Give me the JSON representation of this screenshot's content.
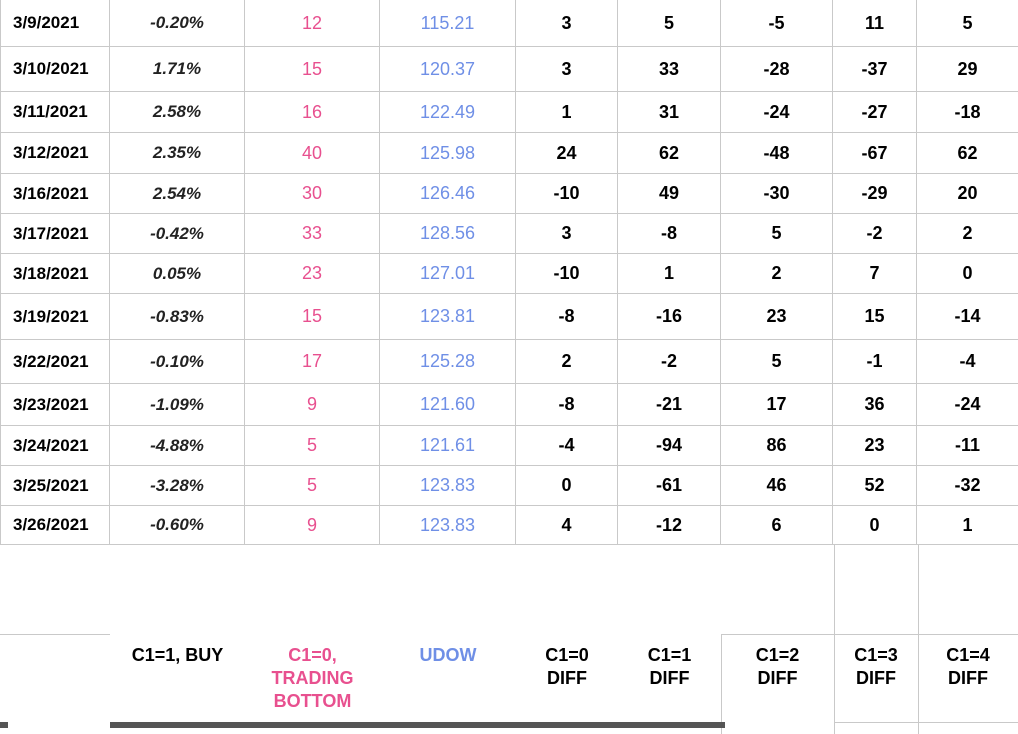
{
  "rows": [
    {
      "date": "3/9/2021",
      "pct": "-0.20%",
      "c1": "12",
      "udow": "115.21",
      "d0": "3",
      "d1": "5",
      "d2": "-5",
      "d3": "11",
      "d4": "5"
    },
    {
      "date": "3/10/2021",
      "pct": "1.71%",
      "c1": "15",
      "udow": "120.37",
      "d0": "3",
      "d1": "33",
      "d2": "-28",
      "d3": "-37",
      "d4": "29"
    },
    {
      "date": "3/11/2021",
      "pct": "2.58%",
      "c1": "16",
      "udow": "122.49",
      "d0": "1",
      "d1": "31",
      "d2": "-24",
      "d3": "-27",
      "d4": "-18"
    },
    {
      "date": "3/12/2021",
      "pct": "2.35%",
      "c1": "40",
      "udow": "125.98",
      "d0": "24",
      "d1": "62",
      "d2": "-48",
      "d3": "-67",
      "d4": "62"
    },
    {
      "date": "3/16/2021",
      "pct": "2.54%",
      "c1": "30",
      "udow": "126.46",
      "d0": "-10",
      "d1": "49",
      "d2": "-30",
      "d3": "-29",
      "d4": "20"
    },
    {
      "date": "3/17/2021",
      "pct": "-0.42%",
      "c1": "33",
      "udow": "128.56",
      "d0": "3",
      "d1": "-8",
      "d2": "5",
      "d3": "-2",
      "d4": "2"
    },
    {
      "date": "3/18/2021",
      "pct": "0.05%",
      "c1": "23",
      "udow": "127.01",
      "d0": "-10",
      "d1": "1",
      "d2": "2",
      "d3": "7",
      "d4": "0"
    },
    {
      "date": "3/19/2021",
      "pct": "-0.83%",
      "c1": "15",
      "udow": "123.81",
      "d0": "-8",
      "d1": "-16",
      "d2": "23",
      "d3": "15",
      "d4": "-14"
    },
    {
      "date": "3/22/2021",
      "pct": "-0.10%",
      "c1": "17",
      "udow": "125.28",
      "d0": "2",
      "d1": "-2",
      "d2": "5",
      "d3": "-1",
      "d4": "-4"
    },
    {
      "date": "3/23/2021",
      "pct": "-1.09%",
      "c1": "9",
      "udow": "121.60",
      "d0": "-8",
      "d1": "-21",
      "d2": "17",
      "d3": "36",
      "d4": "-24"
    },
    {
      "date": "3/24/2021",
      "pct": "-4.88%",
      "c1": "5",
      "udow": "121.61",
      "d0": "-4",
      "d1": "-94",
      "d2": "86",
      "d3": "23",
      "d4": "-11"
    },
    {
      "date": "3/25/2021",
      "pct": "-3.28%",
      "c1": "5",
      "udow": "123.83",
      "d0": "0",
      "d1": "-61",
      "d2": "46",
      "d3": "52",
      "d4": "-32"
    },
    {
      "date": "3/26/2021",
      "pct": "-0.60%",
      "c1": "9",
      "udow": "123.83",
      "d0": "4",
      "d1": "-12",
      "d2": "6",
      "d3": "0",
      "d4": "1"
    }
  ],
  "headers": {
    "buy": "C1=1, BUY",
    "trading_bottom": "C1=0,\nTRADING\nBOTTOM",
    "udow": "UDOW",
    "c1_0": "C1=0\nDIFF",
    "c1_1": "C1=1\nDIFF",
    "c1_2": "C1=2\nDIFF",
    "c1_3": "C1=3\nDIFF",
    "c1_4": "C1=4\nDIFF"
  },
  "colors": {
    "pink": "#e8508f",
    "blue": "#6f8fe6"
  }
}
